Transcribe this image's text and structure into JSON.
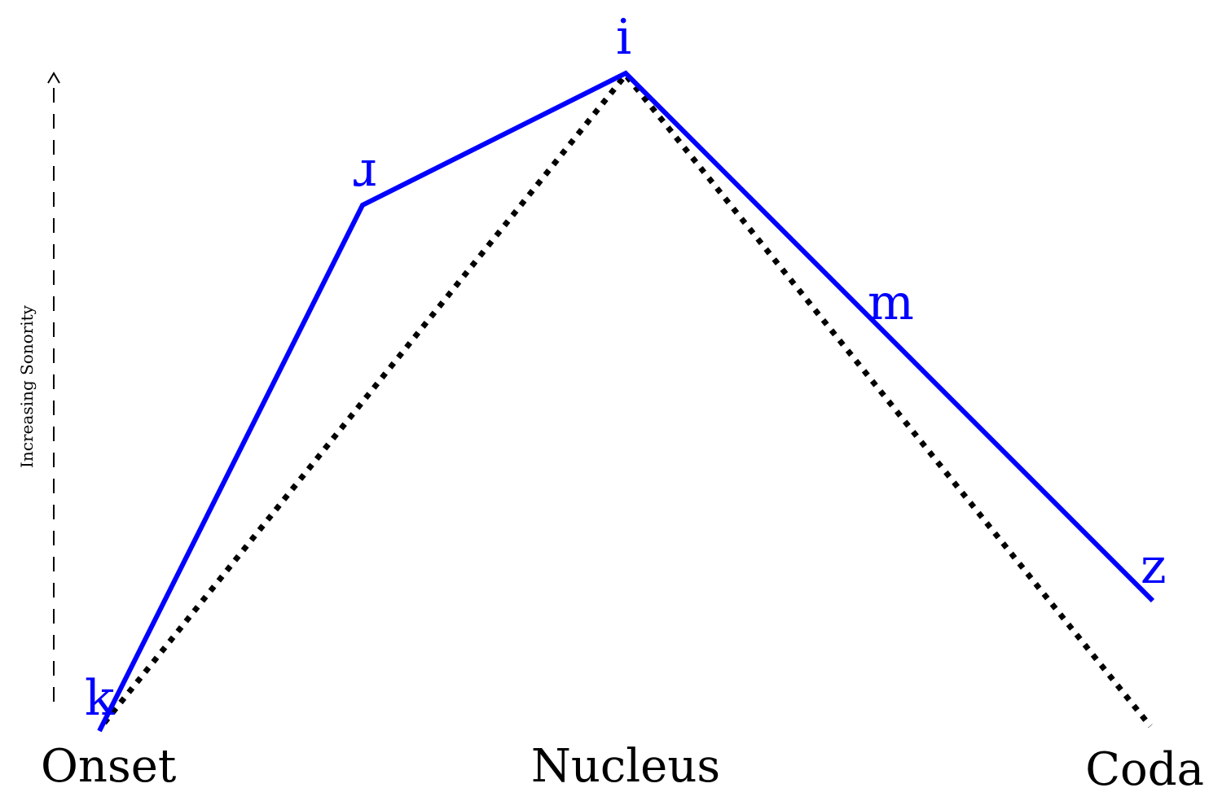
{
  "axis": {
    "label": "Increasing Sonority"
  },
  "segments": {
    "onset": "Onset",
    "nucleus": "Nucleus",
    "coda": "Coda"
  },
  "phones": [
    {
      "symbol": "k",
      "sonority": 0.0
    },
    {
      "symbol": "ɹ",
      "sonority": 0.8
    },
    {
      "symbol": "i",
      "sonority": 1.0
    },
    {
      "symbol": "m",
      "sonority": 0.63
    },
    {
      "symbol": "z",
      "sonority": 0.2
    }
  ],
  "ideal_curve": [
    {
      "position": "onset",
      "sonority": 0.0
    },
    {
      "position": "nucleus",
      "sonority": 1.0
    },
    {
      "position": "coda",
      "sonority": 0.0
    }
  ],
  "colors": {
    "profile": "#0000ff",
    "ideal": "#000000",
    "axis": "#000000"
  }
}
